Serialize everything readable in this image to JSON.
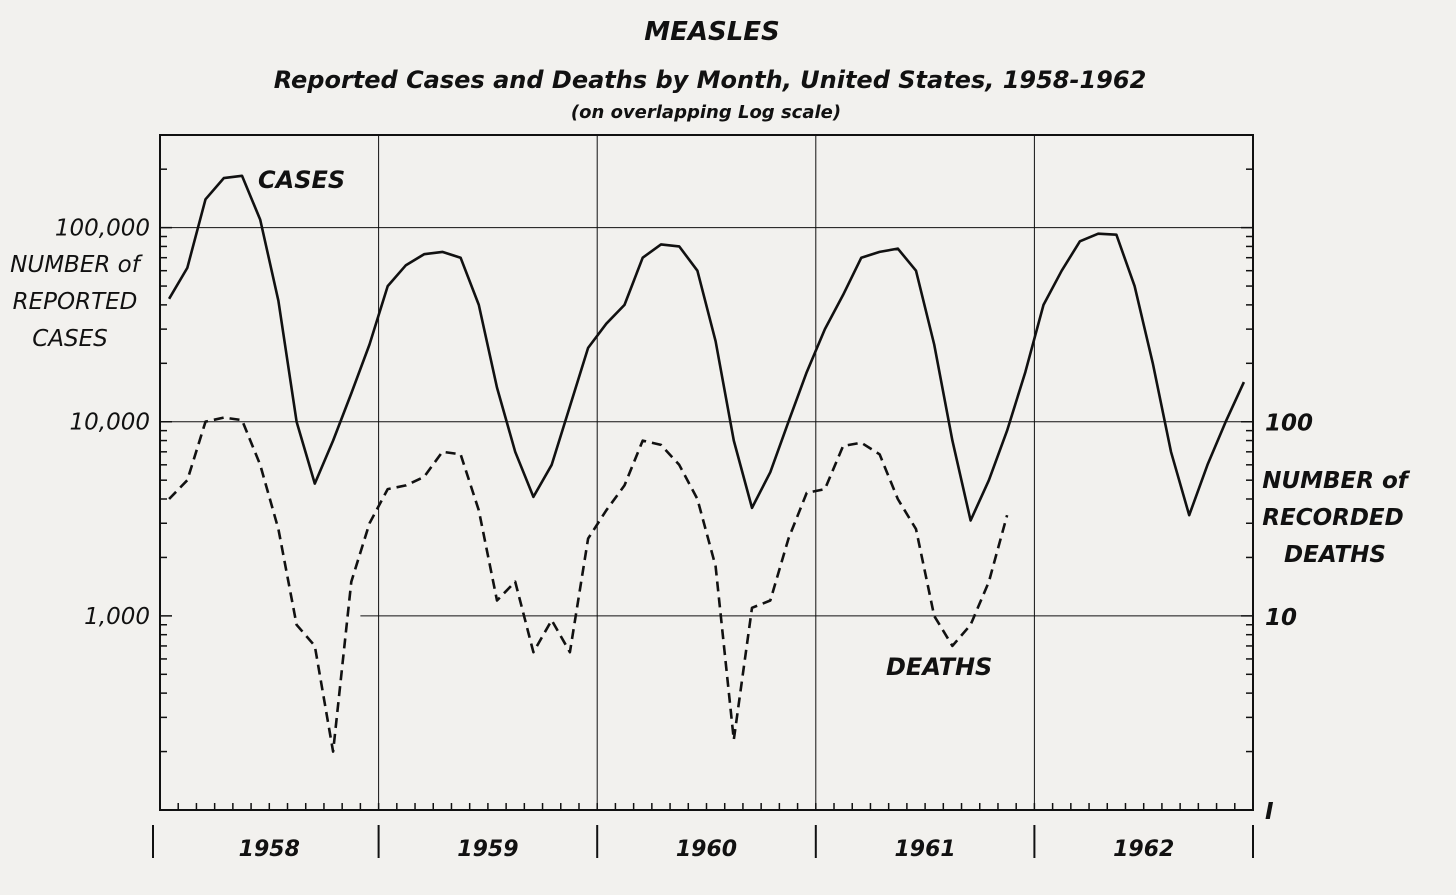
{
  "chart_data": {
    "type": "line",
    "title": "MEASLES",
    "subtitle": "Reported Cases and Deaths by Month, United States, 1958-1962",
    "note": "(on overlapping Log scale)",
    "left_axis": {
      "label_lines": [
        "NUMBER of",
        "REPORTED",
        "CASES"
      ],
      "scale": "log",
      "ylim": [
        100,
        300000
      ],
      "ticks": [
        {
          "value": 1000,
          "label": "1,000"
        },
        {
          "value": 10000,
          "label": "10,000"
        },
        {
          "value": 100000,
          "label": "100,000"
        }
      ]
    },
    "right_axis": {
      "label_lines": [
        "NUMBER of",
        "RECORDED",
        "DEATHS"
      ],
      "scale": "log",
      "ylim": [
        1,
        3000
      ],
      "ticks": [
        {
          "value": 1,
          "label": "I"
        },
        {
          "value": 10,
          "label": "10"
        },
        {
          "value": 100,
          "label": "100"
        }
      ]
    },
    "x_axis": {
      "years": [
        "1958",
        "1959",
        "1960",
        "1961",
        "1962"
      ],
      "months_per_year": 12
    },
    "series": [
      {
        "name": "CASES",
        "axis": "left",
        "style": "solid",
        "values": [
          43000,
          62000,
          140000,
          180000,
          185000,
          110000,
          42000,
          10000,
          4800,
          8000,
          14000,
          25000,
          50000,
          64000,
          73000,
          75000,
          70000,
          40000,
          15000,
          7000,
          4100,
          6000,
          12000,
          24000,
          32000,
          40000,
          70000,
          82000,
          80000,
          60000,
          26000,
          8000,
          3600,
          5500,
          10000,
          18000,
          30000,
          45000,
          70000,
          75000,
          78000,
          60000,
          25000,
          8000,
          3100,
          5000,
          9000,
          18000,
          40000,
          60000,
          85000,
          93000,
          92000,
          50000,
          20000,
          7000,
          3300,
          6000,
          10000,
          16000
        ]
      },
      {
        "name": "DEATHS",
        "axis": "right",
        "style": "dashed",
        "values": [
          40,
          50,
          100,
          105,
          102,
          60,
          28,
          9,
          7,
          2,
          15,
          30,
          45,
          47,
          52,
          70,
          68,
          35,
          12,
          15,
          6.5,
          9.5,
          6.5,
          25,
          35,
          47,
          80,
          76,
          60,
          40,
          18,
          2.3,
          11,
          12,
          25,
          43,
          45,
          75,
          78,
          68,
          40,
          28,
          10,
          7,
          9,
          15,
          33
        ]
      }
    ]
  }
}
